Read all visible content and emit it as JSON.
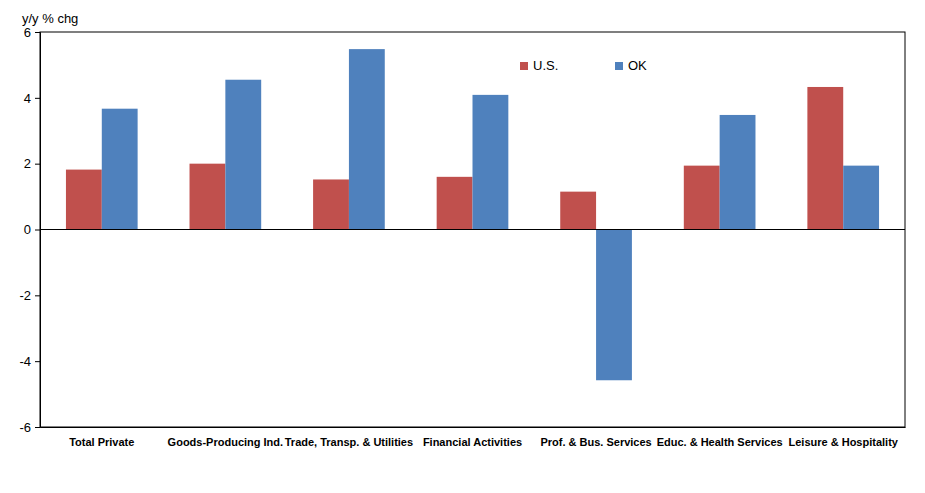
{
  "chart_data": {
    "type": "bar",
    "y_label": "y/y % chg",
    "categories": [
      "Total Private",
      "Goods-Producing Ind.",
      "Trade, Transp. & Utilities",
      "Financial Activities",
      "Prof. & Bus. Services",
      "Educ. & Health Services",
      "Leisure & Hospitality"
    ],
    "series": [
      {
        "name": "U.S.",
        "color": "#c0504d",
        "values": [
          1.82,
          2.0,
          1.52,
          1.6,
          1.15,
          1.94,
          4.33
        ]
      },
      {
        "name": "OK",
        "color": "#4f81bd",
        "values": [
          3.67,
          4.55,
          5.48,
          4.09,
          -4.58,
          3.48,
          1.94
        ]
      }
    ],
    "ylim": [
      -6,
      6
    ],
    "yticks": [
      -6,
      -4,
      -2,
      0,
      2,
      4,
      6
    ],
    "grid": false,
    "legend": "top-right"
  }
}
